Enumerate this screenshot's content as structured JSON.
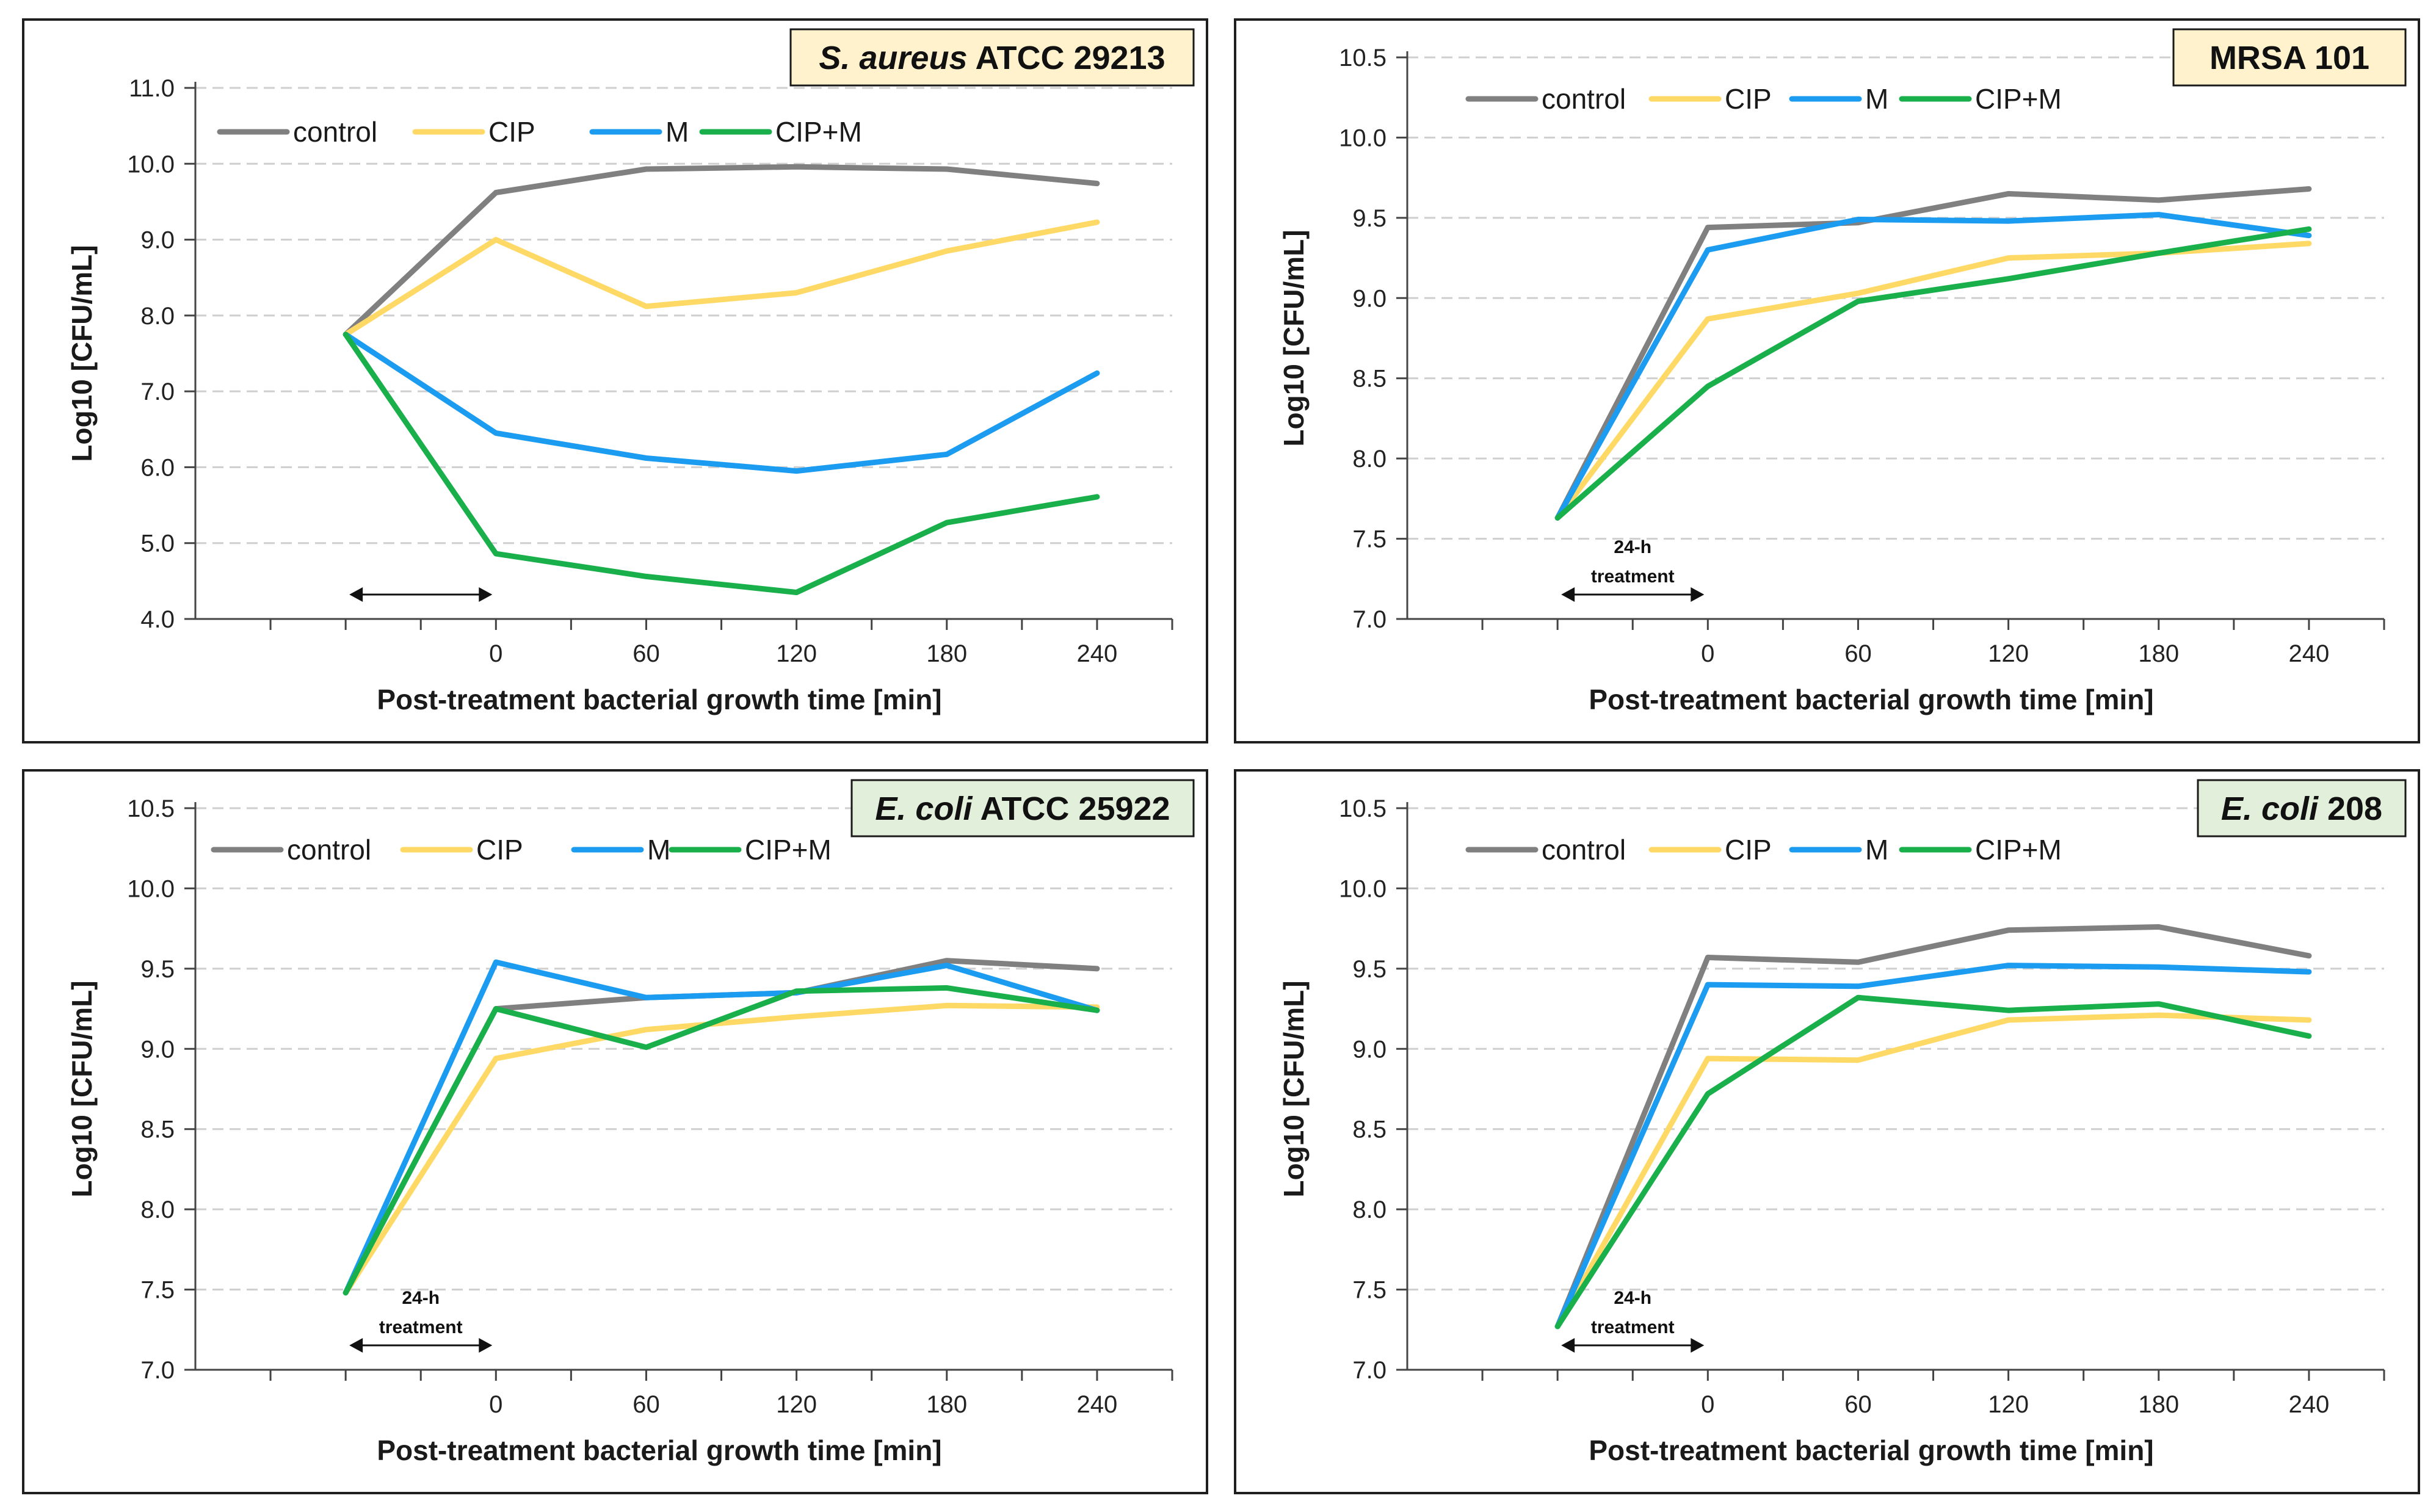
{
  "colors": {
    "control": "#808080",
    "CIP": "#FFD966",
    "M": "#1B9CF0",
    "CIP+M": "#19B04B",
    "title_bg_yellow": "#FFF2CC",
    "title_bg_green": "#E2EFDA"
  },
  "chart_data": [
    {
      "type": "line",
      "title_italic": "S. aureus",
      "title_rest": " ATCC 29213",
      "title_bg": "yellow",
      "xlabel": "Post-treatment bacterial growth time [min]",
      "ylabel": "Log10 [CFU/mL]",
      "ylim": [
        4.0,
        11.0
      ],
      "ystep": 1.0,
      "y_ticks": [
        "4.0",
        "5.0",
        "6.0",
        "7.0",
        "8.0",
        "9.0",
        "10.0",
        "11.0"
      ],
      "xlim": [
        -120,
        270
      ],
      "x_ticks": [
        "0",
        "60",
        "120",
        "180",
        "240"
      ],
      "x": [
        -60,
        0,
        60,
        120,
        180,
        240
      ],
      "annotation": null,
      "series": [
        {
          "name": "control",
          "values": [
            7.75,
            9.62,
            9.93,
            9.96,
            9.93,
            9.74
          ]
        },
        {
          "name": "CIP",
          "values": [
            7.75,
            9.0,
            8.12,
            8.3,
            8.85,
            9.23
          ]
        },
        {
          "name": "M",
          "values": [
            7.75,
            6.45,
            6.12,
            5.95,
            6.17,
            7.24
          ]
        },
        {
          "name": "CIP+M",
          "values": [
            7.75,
            4.86,
            4.56,
            4.35,
            5.27,
            5.61
          ]
        }
      ]
    },
    {
      "type": "line",
      "title_italic": "",
      "title_rest": "MRSA 101",
      "title_bg": "yellow",
      "xlabel": "Post-treatment bacterial growth time [min]",
      "ylabel": "Log10 [CFU/mL]",
      "ylim": [
        7.0,
        10.5
      ],
      "ystep": 0.5,
      "y_ticks": [
        "7.0",
        "7.5",
        "8.0",
        "8.5",
        "9.0",
        "9.5",
        "10.0",
        "10.5"
      ],
      "xlim": [
        -120,
        270
      ],
      "x_ticks": [
        "0",
        "60",
        "120",
        "180",
        "240"
      ],
      "x": [
        -60,
        0,
        60,
        120,
        180,
        240
      ],
      "annotation": {
        "line1": "24-h",
        "line2": "treatment"
      },
      "series": [
        {
          "name": "control",
          "values": [
            7.63,
            9.44,
            9.47,
            9.65,
            9.61,
            9.68
          ]
        },
        {
          "name": "CIP",
          "values": [
            7.63,
            8.87,
            9.03,
            9.25,
            9.28,
            9.34
          ]
        },
        {
          "name": "M",
          "values": [
            7.63,
            9.3,
            9.49,
            9.48,
            9.52,
            9.39
          ]
        },
        {
          "name": "CIP+M",
          "values": [
            7.63,
            8.45,
            8.98,
            9.12,
            9.28,
            9.43
          ]
        }
      ]
    },
    {
      "type": "line",
      "title_italic": "E. coli",
      "title_rest": " ATCC 25922",
      "title_bg": "green",
      "xlabel": "Post-treatment bacterial growth time [min]",
      "ylabel": "Log10 [CFU/mL]",
      "ylim": [
        7.0,
        10.5
      ],
      "ystep": 0.5,
      "y_ticks": [
        "7.0",
        "7.5",
        "8.0",
        "8.5",
        "9.0",
        "9.5",
        "10.0",
        "10.5"
      ],
      "xlim": [
        -120,
        270
      ],
      "x_ticks": [
        "0",
        "60",
        "120",
        "180",
        "240"
      ],
      "x": [
        -60,
        0,
        60,
        120,
        180,
        240
      ],
      "annotation": {
        "line1": "24-h",
        "line2": "treatment"
      },
      "series": [
        {
          "name": "control",
          "values": [
            7.48,
            9.25,
            9.32,
            9.35,
            9.55,
            9.5
          ]
        },
        {
          "name": "CIP",
          "values": [
            7.48,
            8.94,
            9.12,
            9.2,
            9.27,
            9.26
          ]
        },
        {
          "name": "M",
          "values": [
            7.48,
            9.54,
            9.32,
            9.35,
            9.52,
            9.24
          ]
        },
        {
          "name": "CIP+M",
          "values": [
            7.48,
            9.25,
            9.01,
            9.36,
            9.38,
            9.24
          ]
        }
      ]
    },
    {
      "type": "line",
      "title_italic": "E. coli",
      "title_rest": " 208",
      "title_bg": "green",
      "xlabel": "Post-treatment bacterial growth time [min]",
      "ylabel": "Log10 [CFU/mL]",
      "ylim": [
        7.0,
        10.5
      ],
      "ystep": 0.5,
      "y_ticks": [
        "7.0",
        "7.5",
        "8.0",
        "8.5",
        "9.0",
        "9.5",
        "10.0",
        "10.5"
      ],
      "xlim": [
        -120,
        270
      ],
      "x_ticks": [
        "0",
        "60",
        "120",
        "180",
        "240"
      ],
      "x": [
        -60,
        0,
        60,
        120,
        180,
        240
      ],
      "annotation": {
        "line1": "24-h",
        "line2": "treatment"
      },
      "series": [
        {
          "name": "control",
          "values": [
            7.27,
            9.57,
            9.54,
            9.74,
            9.76,
            9.58
          ]
        },
        {
          "name": "CIP",
          "values": [
            7.27,
            8.94,
            8.93,
            9.18,
            9.21,
            9.18
          ]
        },
        {
          "name": "M",
          "values": [
            7.27,
            9.4,
            9.39,
            9.52,
            9.51,
            9.48
          ]
        },
        {
          "name": "CIP+M",
          "values": [
            7.27,
            8.72,
            9.32,
            9.24,
            9.28,
            9.08
          ]
        }
      ]
    }
  ]
}
